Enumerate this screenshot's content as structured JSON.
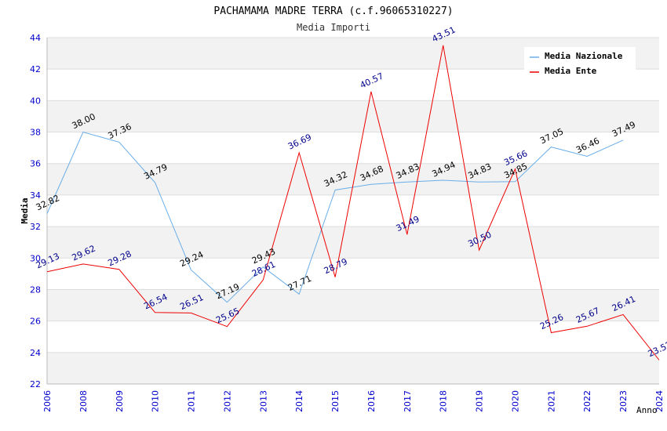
{
  "chart_data": {
    "type": "line",
    "title": "PACHAMAMA MADRE TERRA (c.f.96065310227)",
    "subtitle": "Media Importi",
    "xlabel": "Anno",
    "ylabel": "Media",
    "ylim": [
      22,
      44
    ],
    "yticks": [
      "22",
      "24",
      "26",
      "28",
      "30",
      "32",
      "34",
      "36",
      "38",
      "40",
      "42",
      "44"
    ],
    "categories": [
      "2006",
      "2008",
      "2009",
      "2010",
      "2011",
      "2012",
      "2013",
      "2014",
      "2015",
      "2016",
      "2017",
      "2018",
      "2019",
      "2020",
      "2021",
      "2022",
      "2023",
      "2024"
    ],
    "legend_position": "top-right",
    "series": [
      {
        "name": "Media Nazionale",
        "color": "#6aaee8",
        "label_color": "#000000",
        "values": [
          32.82,
          38.0,
          37.36,
          34.79,
          29.24,
          27.19,
          29.43,
          27.71,
          34.32,
          34.68,
          34.83,
          34.94,
          34.83,
          34.85,
          37.05,
          36.46,
          37.49,
          null
        ],
        "labels": [
          "32.82",
          "38.00",
          "37.36",
          "34.79",
          "29.24",
          "27.19",
          "29.43",
          "27.71",
          "34.32",
          "34.68",
          "34.83",
          "34.94",
          "34.83",
          "34.85",
          "37.05",
          "36.46",
          "37.49",
          null
        ]
      },
      {
        "name": "Media Ente",
        "color": "#ee0000",
        "label_color": "#00008b",
        "values": [
          29.13,
          29.62,
          29.28,
          26.54,
          26.51,
          25.65,
          28.61,
          36.69,
          28.79,
          40.57,
          31.49,
          43.51,
          30.5,
          35.66,
          25.26,
          25.67,
          26.41,
          23.52
        ],
        "labels": [
          "29.13",
          "29.62",
          "29.28",
          "26.54",
          "26.51",
          "25.65",
          "28.61",
          "36.69",
          "28.79",
          "40.57",
          "31.49",
          "43.51",
          "30.50",
          "35.66",
          "25.26",
          "25.67",
          "26.41",
          "23.52"
        ]
      }
    ]
  }
}
